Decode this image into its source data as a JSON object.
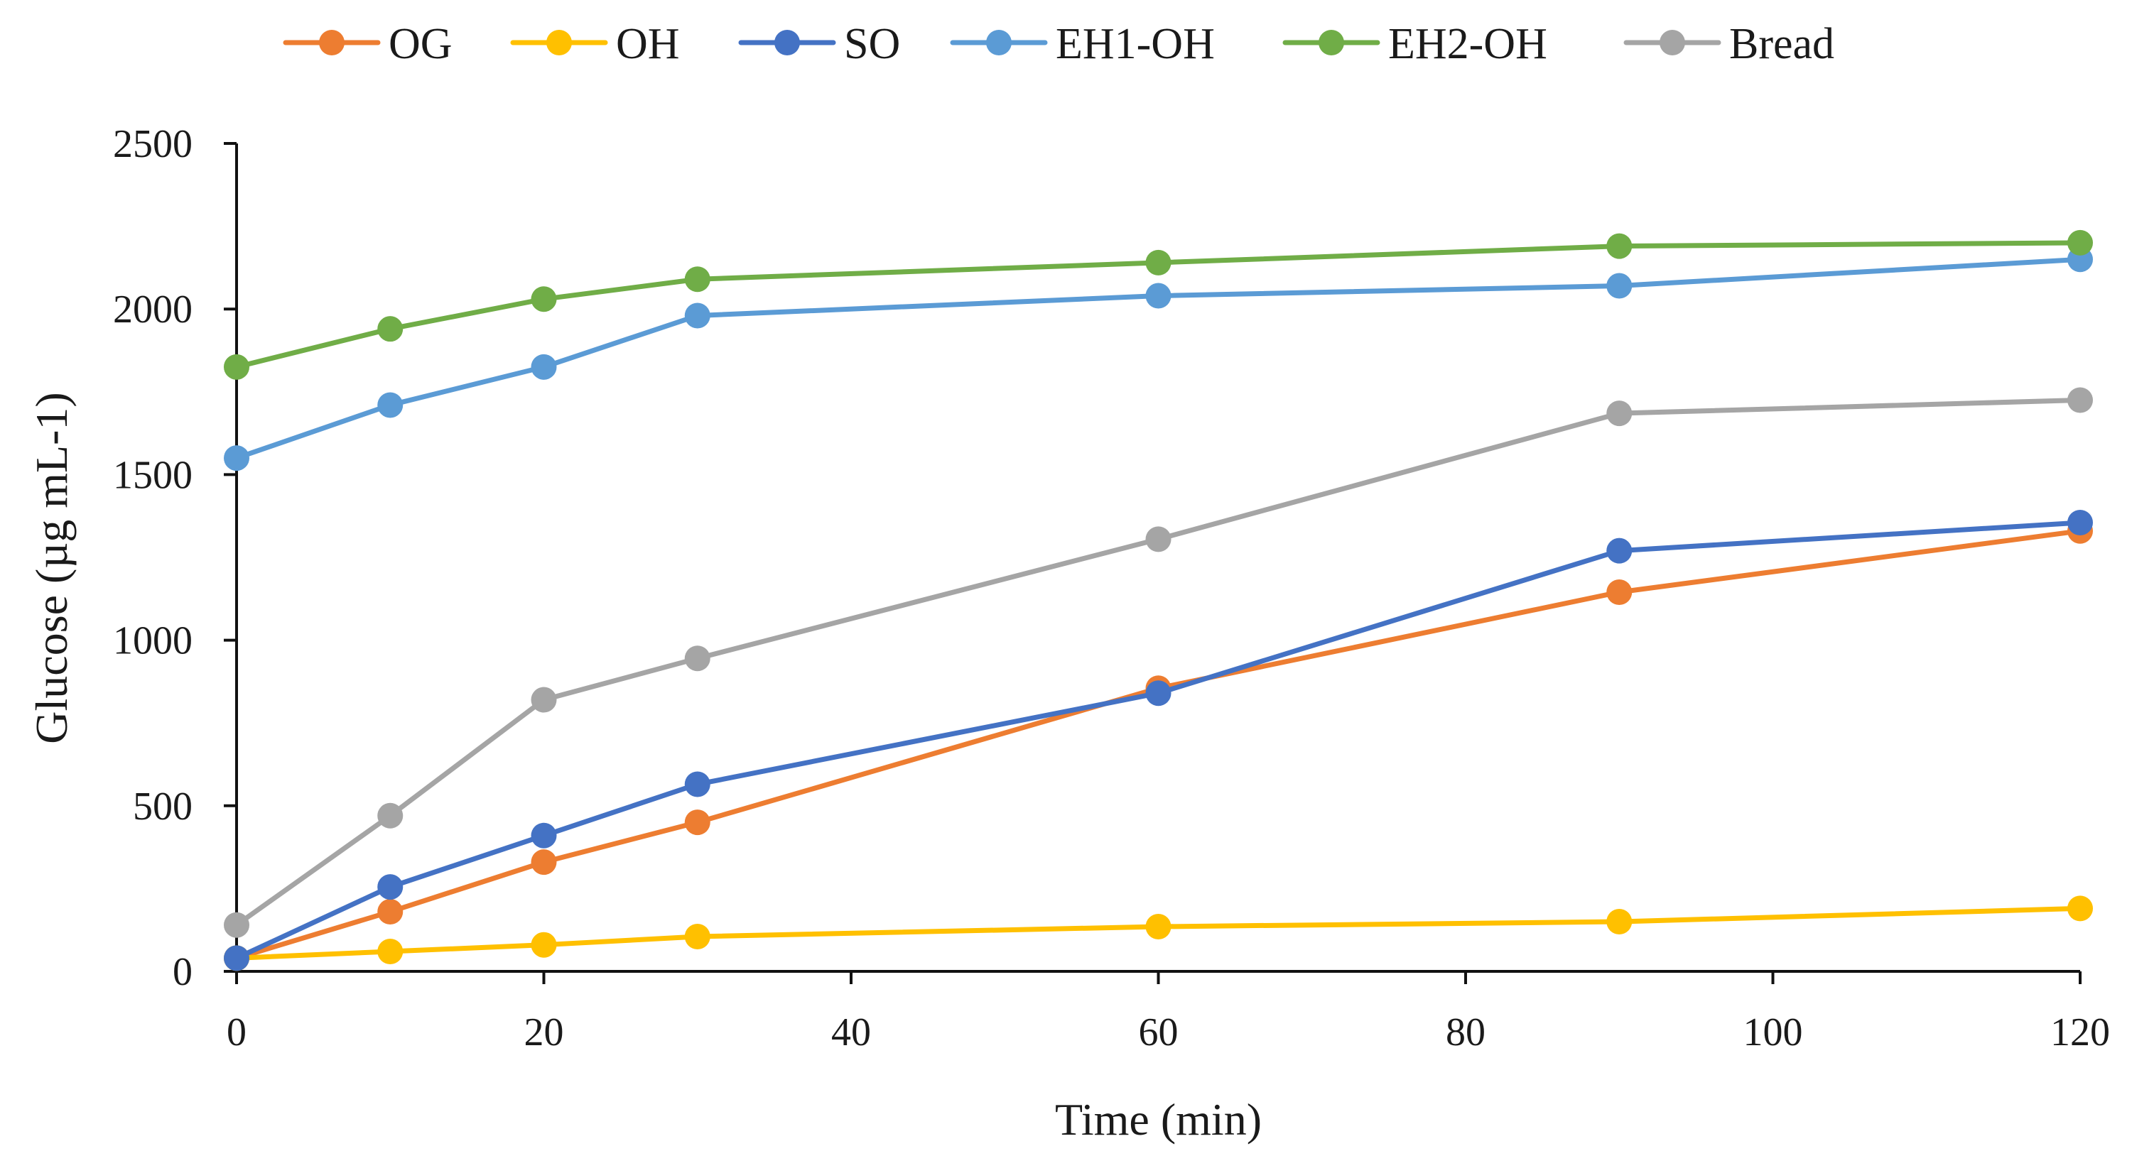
{
  "chart_data": {
    "type": "line",
    "title": "",
    "xlabel": "Time (min)",
    "ylabel": "Glucose (µg mL-1)",
    "x": [
      0,
      10,
      20,
      30,
      60,
      90,
      120
    ],
    "xlim": [
      0,
      120
    ],
    "ylim": [
      0,
      2500
    ],
    "xticks": [
      0,
      20,
      40,
      60,
      80,
      100,
      120
    ],
    "yticks": [
      0,
      500,
      1000,
      1500,
      2000,
      2500
    ],
    "grid": false,
    "legend_position": "top",
    "series": [
      {
        "name": "OG",
        "color": "#ED7D31",
        "values": [
          40,
          180,
          330,
          450,
          855,
          1145,
          1330
        ]
      },
      {
        "name": "OH",
        "color": "#FFC000",
        "values": [
          40,
          60,
          80,
          105,
          135,
          150,
          190
        ]
      },
      {
        "name": "SO",
        "color": "#4472C4",
        "values": [
          40,
          255,
          410,
          565,
          840,
          1270,
          1355
        ]
      },
      {
        "name": "EH1-OH",
        "color": "#5B9BD5",
        "values": [
          1550,
          1710,
          1825,
          1980,
          2040,
          2070,
          2150
        ]
      },
      {
        "name": "EH2-OH",
        "color": "#70AD47",
        "values": [
          1825,
          1940,
          2030,
          2090,
          2140,
          2190,
          2200
        ]
      },
      {
        "name": "Bread",
        "color": "#A5A5A5",
        "values": [
          140,
          470,
          820,
          945,
          1305,
          1685,
          1725
        ]
      }
    ]
  }
}
